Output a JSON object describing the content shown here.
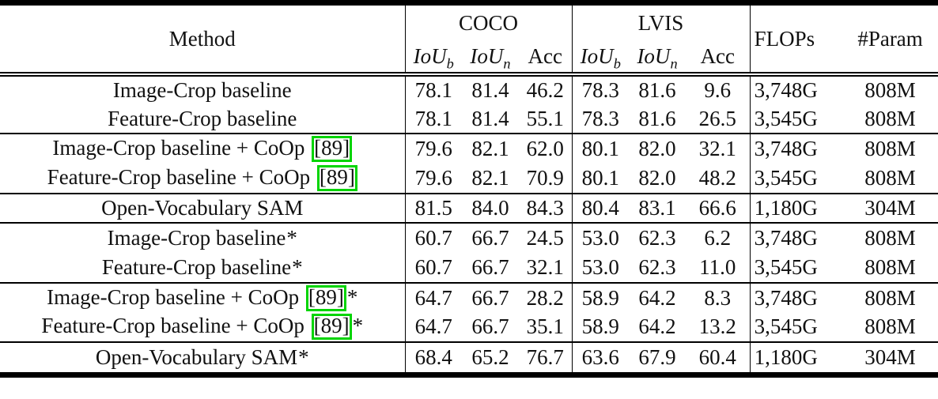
{
  "page": {
    "background": "#ffffff",
    "text_color": "#111111",
    "rule_color": "#000000",
    "citation_box_color": "#00d400"
  },
  "table": {
    "header": {
      "method": "Method",
      "coco": "COCO",
      "lvis": "LVIS",
      "iou": "IoU",
      "iou_sub_b": "b",
      "iou_sub_n": "n",
      "acc": "Acc",
      "flops": "FLOPs",
      "param": "#Param"
    },
    "rows": [
      {
        "method": "Image-Crop baseline",
        "cite": "",
        "star": false,
        "separator_above": false,
        "coco": [
          "78.1",
          "81.4",
          "46.2"
        ],
        "lvis": [
          "78.3",
          "81.6",
          "9.6"
        ],
        "flops": "3,748G",
        "param": "808M"
      },
      {
        "method": "Feature-Crop baseline",
        "cite": "",
        "star": false,
        "separator_above": false,
        "coco": [
          "78.1",
          "81.4",
          "55.1"
        ],
        "lvis": [
          "78.3",
          "81.6",
          "26.5"
        ],
        "flops": "3,545G",
        "param": "808M"
      },
      {
        "method": "Image-Crop baseline + CoOp",
        "cite": "89",
        "star": false,
        "separator_above": true,
        "coco": [
          "79.6",
          "82.1",
          "62.0"
        ],
        "lvis": [
          "80.1",
          "82.0",
          "32.1"
        ],
        "flops": "3,748G",
        "param": "808M"
      },
      {
        "method": "Feature-Crop baseline + CoOp",
        "cite": "89",
        "star": false,
        "separator_above": false,
        "coco": [
          "79.6",
          "82.1",
          "70.9"
        ],
        "lvis": [
          "80.1",
          "82.0",
          "48.2"
        ],
        "flops": "3,545G",
        "param": "808M"
      },
      {
        "method": "Open-Vocabulary SAM",
        "cite": "",
        "star": false,
        "separator_above": true,
        "coco": [
          "81.5",
          "84.0",
          "84.3"
        ],
        "lvis": [
          "80.4",
          "83.1",
          "66.6"
        ],
        "flops": "1,180G",
        "param": "304M"
      },
      {
        "method": "Image-Crop baseline",
        "cite": "",
        "star": true,
        "separator_above": true,
        "coco": [
          "60.7",
          "66.7",
          "24.5"
        ],
        "lvis": [
          "53.0",
          "62.3",
          "6.2"
        ],
        "flops": "3,748G",
        "param": "808M"
      },
      {
        "method": "Feature-Crop baseline",
        "cite": "",
        "star": true,
        "separator_above": false,
        "coco": [
          "60.7",
          "66.7",
          "32.1"
        ],
        "lvis": [
          "53.0",
          "62.3",
          "11.0"
        ],
        "flops": "3,545G",
        "param": "808M"
      },
      {
        "method": "Image-Crop baseline + CoOp",
        "cite": "89",
        "star": true,
        "separator_above": true,
        "coco": [
          "64.7",
          "66.7",
          "28.2"
        ],
        "lvis": [
          "58.9",
          "64.2",
          "8.3"
        ],
        "flops": "3,748G",
        "param": "808M"
      },
      {
        "method": "Feature-Crop baseline + CoOp",
        "cite": "89",
        "star": true,
        "separator_above": false,
        "coco": [
          "64.7",
          "66.7",
          "35.1"
        ],
        "lvis": [
          "58.9",
          "64.2",
          "13.2"
        ],
        "flops": "3,545G",
        "param": "808M"
      },
      {
        "method": "Open-Vocabulary SAM",
        "cite": "",
        "star": true,
        "separator_above": true,
        "coco": [
          "68.4",
          "65.2",
          "76.7"
        ],
        "lvis": [
          "63.6",
          "67.9",
          "60.4"
        ],
        "flops": "1,180G",
        "param": "304M"
      }
    ]
  }
}
